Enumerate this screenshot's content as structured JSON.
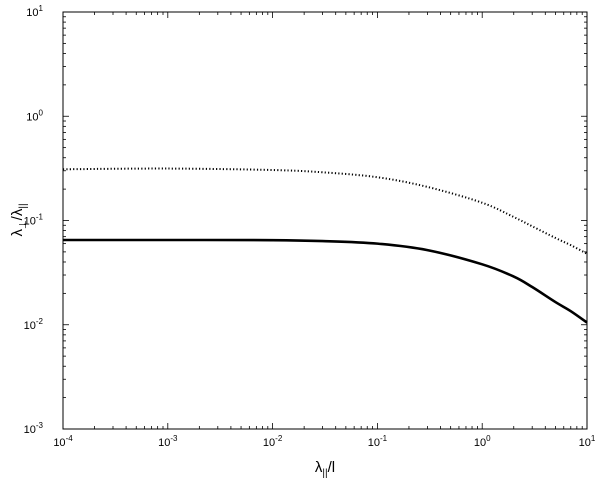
{
  "chart_data": {
    "type": "line",
    "title": "",
    "xlabel": {
      "main": "λ",
      "sub": "||",
      "rest": "/l"
    },
    "ylabel": {
      "main": "λ",
      "sub1": "⊥",
      "mid": "/λ",
      "sub2": "||"
    },
    "xscale": "log",
    "yscale": "log",
    "xlim": [
      0.0001,
      10
    ],
    "ylim": [
      0.001,
      10
    ],
    "grid": false,
    "x_ticks": [
      {
        "value": 0.0001,
        "base": "10",
        "exp": "-4"
      },
      {
        "value": 0.001,
        "base": "10",
        "exp": "-3"
      },
      {
        "value": 0.01,
        "base": "10",
        "exp": "-2"
      },
      {
        "value": 0.1,
        "base": "10",
        "exp": "-1"
      },
      {
        "value": 1,
        "base": "10",
        "exp": "0"
      },
      {
        "value": 10,
        "base": "10",
        "exp": "1"
      }
    ],
    "y_ticks": [
      {
        "value": 0.001,
        "base": "10",
        "exp": "-3"
      },
      {
        "value": 0.01,
        "base": "10",
        "exp": "-2"
      },
      {
        "value": 0.1,
        "base": "10",
        "exp": "-1"
      },
      {
        "value": 1,
        "base": "10",
        "exp": "0"
      },
      {
        "value": 10,
        "base": "10",
        "exp": "1"
      }
    ],
    "series": [
      {
        "style": "solid",
        "x": [
          0.0001,
          0.001,
          0.01,
          0.03,
          0.1,
          0.3,
          1,
          2,
          3,
          5,
          7,
          10
        ],
        "y": [
          0.065,
          0.065,
          0.0648,
          0.0635,
          0.06,
          0.052,
          0.038,
          0.029,
          0.023,
          0.0165,
          0.0135,
          0.0105
        ]
      },
      {
        "style": "dotted",
        "x": [
          0.0001,
          0.001,
          0.01,
          0.03,
          0.1,
          0.3,
          1,
          2,
          3,
          5,
          7,
          10
        ],
        "y": [
          0.31,
          0.315,
          0.305,
          0.29,
          0.26,
          0.21,
          0.148,
          0.108,
          0.088,
          0.068,
          0.058,
          0.048
        ]
      }
    ]
  }
}
